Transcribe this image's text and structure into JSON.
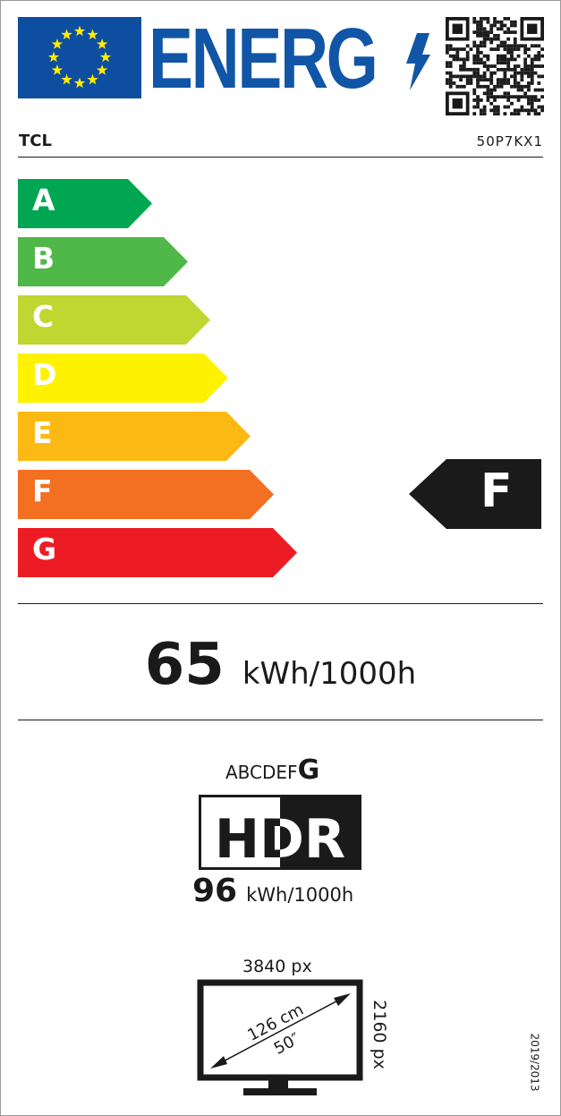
{
  "header": {
    "logo_text": "ENERG",
    "brand": "TCL",
    "model": "50P7KX1"
  },
  "scale": {
    "classes": [
      {
        "letter": "A",
        "color": "#00a651"
      },
      {
        "letter": "B",
        "color": "#50b848"
      },
      {
        "letter": "C",
        "color": "#bfd730"
      },
      {
        "letter": "D",
        "color": "#fff200"
      },
      {
        "letter": "E",
        "color": "#fdb913"
      },
      {
        "letter": "F",
        "color": "#f36f21"
      },
      {
        "letter": "G",
        "color": "#ed1c24"
      }
    ],
    "rating": "F"
  },
  "sdr": {
    "value": "65",
    "unit": "kWh/1000h"
  },
  "hdr": {
    "scale_prefix": "ABCDEF",
    "class": "G",
    "logo": "HDR",
    "value": "96",
    "unit": "kWh/1000h"
  },
  "screen": {
    "width_px": "3840 px",
    "height_px": "2160 px",
    "diagonal_cm": "126 cm",
    "diagonal_in": "50″"
  },
  "regulation": "2019/2013",
  "colors": {
    "eu_blue": "#0e4ea1",
    "logo_blue": "#1155a6",
    "star_yellow": "#ffed00"
  }
}
